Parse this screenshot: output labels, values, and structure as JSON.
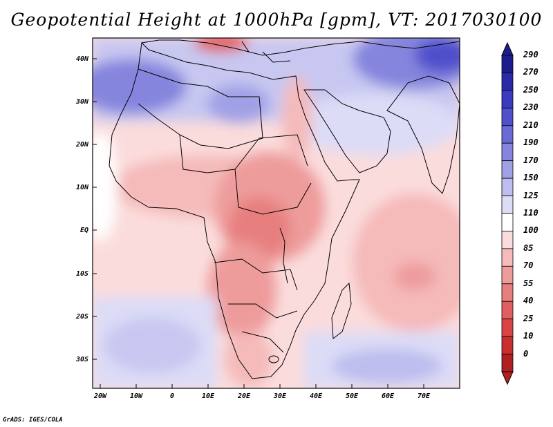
{
  "title": "Geopotential Height at 1000hPa [gpm], VT: 2017030100",
  "credit": "GrADS: IGES/COLA",
  "map": {
    "lat_labels": [
      "40N",
      "30N",
      "20N",
      "10N",
      "EQ",
      "10S",
      "20S",
      "30S"
    ],
    "lon_labels": [
      "20W",
      "10W",
      "0",
      "10E",
      "20E",
      "30E",
      "40E",
      "50E",
      "60E",
      "70E"
    ]
  },
  "colorbar": {
    "levels": [
      "290",
      "270",
      "250",
      "230",
      "210",
      "190",
      "170",
      "150",
      "125",
      "110",
      "100",
      "85",
      "70",
      "55",
      "40",
      "25",
      "10",
      "0"
    ],
    "colors": [
      "#1c1c8c",
      "#2a2aa8",
      "#3b3bbf",
      "#5050cc",
      "#6a6ad6",
      "#8585de",
      "#a0a0e6",
      "#bdbdef",
      "#dcdcf7",
      "#ffffff",
      "#fbdcdc",
      "#f5baba",
      "#ee9b9b",
      "#e77f7f",
      "#e06060",
      "#d94444",
      "#c83030",
      "#b02020"
    ]
  }
}
